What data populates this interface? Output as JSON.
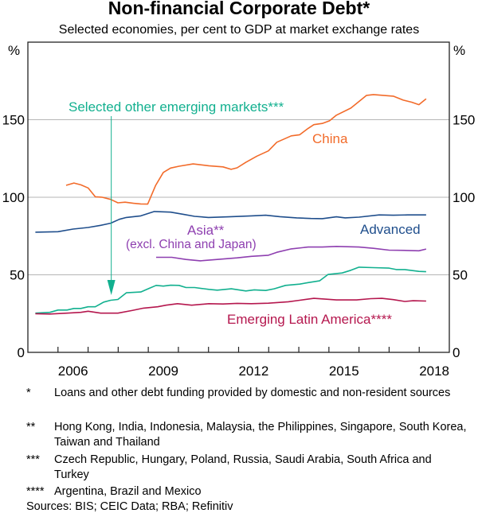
{
  "title": "Non-financial Corporate Debt*",
  "subtitle": "Selected economies, per cent to GDP at market exchange rates",
  "chart_data": {
    "type": "line",
    "title": "Non-financial Corporate Debt*",
    "subtitle": "Selected economies, per cent to GDP at market exchange rates",
    "ylabel_left": "%",
    "ylabel_right": "%",
    "xlim": [
      2005,
      2019
    ],
    "ylim": [
      0,
      200
    ],
    "x_ticks": [
      "2006",
      "2009",
      "2012",
      "2015",
      "2018"
    ],
    "y_ticks": [
      "0",
      "50",
      "100",
      "150"
    ],
    "grid": "horizontal",
    "series": [
      {
        "name": "China",
        "color": "#f26b2a",
        "points": [
          [
            2006.27,
            107.7
          ],
          [
            2006.53,
            109.2
          ],
          [
            2006.76,
            108
          ],
          [
            2007.0,
            106
          ],
          [
            2007.24,
            100.3
          ],
          [
            2007.47,
            100
          ],
          [
            2007.75,
            98.6
          ],
          [
            2007.99,
            96.4
          ],
          [
            2008.23,
            96.8
          ],
          [
            2008.51,
            96.1
          ],
          [
            2008.75,
            95.7
          ],
          [
            2008.98,
            95.6
          ],
          [
            2009.24,
            107.5
          ],
          [
            2009.5,
            116
          ],
          [
            2009.74,
            118.8
          ],
          [
            2010.02,
            120
          ],
          [
            2010.49,
            121.5
          ],
          [
            2011.01,
            120.3
          ],
          [
            2011.48,
            119.6
          ],
          [
            2011.75,
            118
          ],
          [
            2011.95,
            119
          ],
          [
            2012.24,
            122.5
          ],
          [
            2012.61,
            126.5
          ],
          [
            2012.99,
            129.9
          ],
          [
            2013.27,
            135.5
          ],
          [
            2013.75,
            139.6
          ],
          [
            2014.03,
            140.3
          ],
          [
            2014.31,
            144.4
          ],
          [
            2014.5,
            146.8
          ],
          [
            2014.78,
            147.6
          ],
          [
            2015.02,
            149.3
          ],
          [
            2015.25,
            152.9
          ],
          [
            2015.73,
            157.5
          ],
          [
            2016.25,
            165.7
          ],
          [
            2016.48,
            166.2
          ],
          [
            2016.81,
            165.7
          ],
          [
            2017.14,
            165.2
          ],
          [
            2017.47,
            162.6
          ],
          [
            2017.75,
            161.3
          ],
          [
            2017.99,
            159.7
          ],
          [
            2018.23,
            163.5
          ]
        ]
      },
      {
        "name": "Advanced",
        "color": "#1f4e8c",
        "points": [
          [
            2005.25,
            77.5
          ],
          [
            2006.0,
            77.8
          ],
          [
            2006.5,
            79.5
          ],
          [
            2007.0,
            80.5
          ],
          [
            2007.42,
            81.9
          ],
          [
            2007.75,
            83.3
          ],
          [
            2008.04,
            85.8
          ],
          [
            2008.27,
            87
          ],
          [
            2008.75,
            88
          ],
          [
            2009.2,
            90.8
          ],
          [
            2009.74,
            90.4
          ],
          [
            2010.16,
            89
          ],
          [
            2010.54,
            87.7
          ],
          [
            2011.0,
            87
          ],
          [
            2011.67,
            87.4
          ],
          [
            2012.42,
            88
          ],
          [
            2012.9,
            88.4
          ],
          [
            2013.37,
            87.5
          ],
          [
            2013.93,
            86.7
          ],
          [
            2014.4,
            86.3
          ],
          [
            2014.78,
            86.2
          ],
          [
            2015.25,
            87.4
          ],
          [
            2015.54,
            86.7
          ],
          [
            2016.0,
            87.2
          ],
          [
            2016.67,
            88.6
          ],
          [
            2017.14,
            88.4
          ],
          [
            2017.61,
            88.6
          ],
          [
            2018.23,
            88.6
          ]
        ]
      },
      {
        "name": "Asia** (excl. China and Japan)",
        "color": "#8e3fb0",
        "points": [
          [
            2009.26,
            61.3
          ],
          [
            2009.78,
            61.3
          ],
          [
            2010.25,
            59.9
          ],
          [
            2010.73,
            59
          ],
          [
            2011.29,
            59.9
          ],
          [
            2011.95,
            60.9
          ],
          [
            2012.42,
            61.9
          ],
          [
            2012.99,
            62.6
          ],
          [
            2013.27,
            64.5
          ],
          [
            2013.75,
            66.7
          ],
          [
            2014.31,
            67.9
          ],
          [
            2014.78,
            67.9
          ],
          [
            2015.25,
            68.3
          ],
          [
            2016.0,
            67.9
          ],
          [
            2016.48,
            67.1
          ],
          [
            2017.0,
            65.9
          ],
          [
            2017.61,
            65.7
          ],
          [
            2017.99,
            65.5
          ],
          [
            2018.23,
            66.6
          ]
        ]
      },
      {
        "name": "Selected other emerging markets***",
        "color": "#12b08f",
        "points": [
          [
            2005.25,
            25.3
          ],
          [
            2005.73,
            25.8
          ],
          [
            2006.0,
            27.3
          ],
          [
            2006.3,
            27.3
          ],
          [
            2006.53,
            28.3
          ],
          [
            2006.76,
            28.3
          ],
          [
            2007.0,
            29.4
          ],
          [
            2007.24,
            29.4
          ],
          [
            2007.52,
            32.4
          ],
          [
            2007.75,
            33.6
          ],
          [
            2007.99,
            34.1
          ],
          [
            2008.27,
            38.4
          ],
          [
            2008.75,
            38.9
          ],
          [
            2009.03,
            41.3
          ],
          [
            2009.26,
            43.2
          ],
          [
            2009.5,
            42.7
          ],
          [
            2009.74,
            43.3
          ],
          [
            2010.02,
            43.2
          ],
          [
            2010.25,
            41.8
          ],
          [
            2010.54,
            41.8
          ],
          [
            2011.01,
            40.6
          ],
          [
            2011.29,
            40.1
          ],
          [
            2011.76,
            41
          ],
          [
            2012.24,
            39.6
          ],
          [
            2012.52,
            40.3
          ],
          [
            2012.9,
            39.9
          ],
          [
            2013.18,
            41
          ],
          [
            2013.56,
            43.2
          ],
          [
            2014.03,
            44
          ],
          [
            2014.31,
            45
          ],
          [
            2014.69,
            46.1
          ],
          [
            2014.97,
            50.2
          ],
          [
            2015.44,
            51.2
          ],
          [
            2015.73,
            52.9
          ],
          [
            2016.0,
            54.9
          ],
          [
            2016.48,
            54.6
          ],
          [
            2017.0,
            54.3
          ],
          [
            2017.24,
            53.4
          ],
          [
            2017.52,
            53.4
          ],
          [
            2017.99,
            52.2
          ],
          [
            2018.23,
            52
          ]
        ]
      },
      {
        "name": "Emerging Latin America****",
        "color": "#b5174e",
        "points": [
          [
            2005.25,
            24.9
          ],
          [
            2005.73,
            24.7
          ],
          [
            2006.3,
            25.3
          ],
          [
            2006.76,
            25.8
          ],
          [
            2007.0,
            26.5
          ],
          [
            2007.42,
            25.3
          ],
          [
            2007.99,
            25.3
          ],
          [
            2008.46,
            27
          ],
          [
            2008.84,
            28.5
          ],
          [
            2009.31,
            29.4
          ],
          [
            2009.59,
            30.4
          ],
          [
            2009.97,
            31.4
          ],
          [
            2010.44,
            30.4
          ],
          [
            2011.01,
            31.4
          ],
          [
            2011.48,
            31.2
          ],
          [
            2011.95,
            31.6
          ],
          [
            2012.42,
            31.4
          ],
          [
            2012.99,
            31.7
          ],
          [
            2013.65,
            32.6
          ],
          [
            2014.03,
            33.6
          ],
          [
            2014.5,
            34.8
          ],
          [
            2014.88,
            34.3
          ],
          [
            2015.25,
            33.8
          ],
          [
            2015.92,
            33.8
          ],
          [
            2016.39,
            34.6
          ],
          [
            2016.76,
            34.8
          ],
          [
            2017.14,
            34
          ],
          [
            2017.52,
            32.8
          ],
          [
            2017.8,
            33.3
          ],
          [
            2018.23,
            33.1
          ]
        ]
      }
    ],
    "annotations": {
      "china": "China",
      "advanced": "Advanced",
      "asia": "Asia**",
      "asia_note": "(excl. China and Japan)",
      "em": "Selected other emerging markets***",
      "latam": "Emerging Latin America****"
    }
  },
  "footnotes": [
    {
      "marker": "*",
      "text": "Loans and other debt funding provided by domestic and non-resident sources"
    },
    {
      "marker": "**",
      "text": "Hong Kong, India, Indonesia, Malaysia, the Philippines, Singapore, South Korea, Taiwan and Thailand"
    },
    {
      "marker": "***",
      "text": "Czech Republic, Hungary, Poland, Russia, Saudi Arabia, South Africa and Turkey"
    },
    {
      "marker": "****",
      "text": "Argentina, Brazil and Mexico"
    }
  ],
  "sources": "Sources: BIS; CEIC Data; RBA; Refinitiv"
}
